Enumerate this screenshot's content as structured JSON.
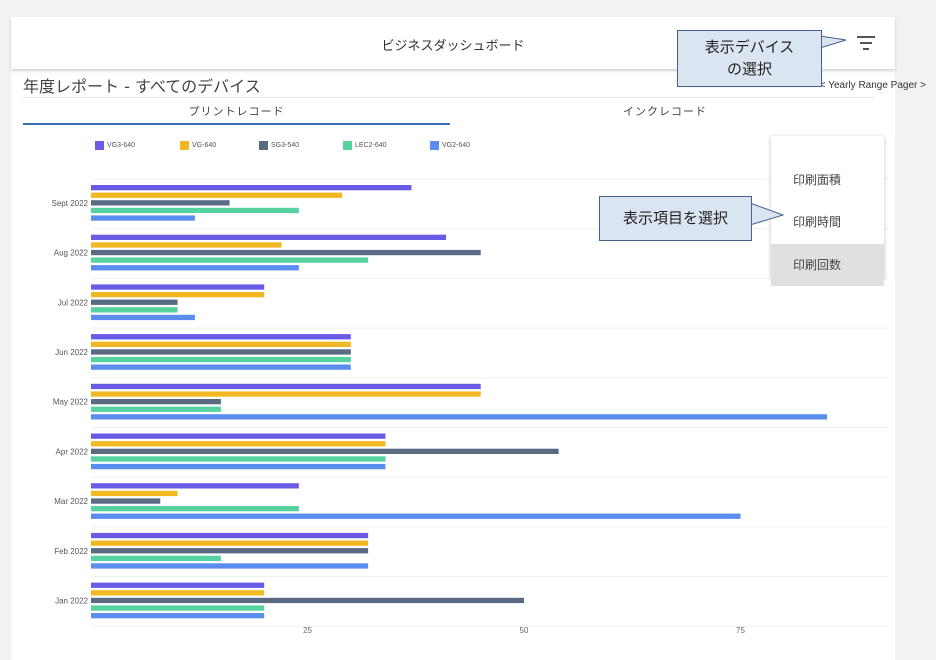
{
  "header": {
    "title": "ビジネスダッシュボード",
    "filter_icon": "filter-list-icon"
  },
  "report": {
    "title": "年度レポート - すべてのデバイス",
    "pager": "< Yearly Range Pager >"
  },
  "tabs": [
    {
      "label": "プリントレコード",
      "active": true
    },
    {
      "label": "インクレコード",
      "active": false
    }
  ],
  "menu": {
    "items": [
      {
        "label": "印刷面積",
        "selected": false
      },
      {
        "label": "印刷時間",
        "selected": false
      },
      {
        "label": "印刷回数",
        "selected": true
      }
    ]
  },
  "callouts": {
    "device": {
      "line1": "表示デバイス",
      "line2": "の選択"
    },
    "item": "表示項目を選択"
  },
  "colors": {
    "tab_accent": "#3b6fb6",
    "callout_fill": "#dbe5f1",
    "callout_border": "#41618c"
  },
  "chart_data": {
    "type": "bar",
    "orientation": "horizontal",
    "categories": [
      "Sept 2022",
      "Aug 2022",
      "Jul 2022",
      "Jun 2022",
      "May 2022",
      "Apr 2022",
      "Mar 2022",
      "Feb 2022",
      "Jan 2022"
    ],
    "series": [
      {
        "name": "VG3-640",
        "color": "#6a5be6",
        "values": [
          37,
          41,
          20,
          30,
          45,
          34,
          24,
          32,
          20
        ]
      },
      {
        "name": "VG-640",
        "color": "#f2b824",
        "values": [
          29,
          22,
          20,
          30,
          45,
          34,
          10,
          32,
          20
        ]
      },
      {
        "name": "SG3-540",
        "color": "#5a6a83",
        "values": [
          16,
          45,
          10,
          30,
          15,
          54,
          8,
          32,
          50
        ]
      },
      {
        "name": "LEC2-640",
        "color": "#56d1a0",
        "values": [
          24,
          32,
          10,
          30,
          15,
          34,
          24,
          15,
          20
        ]
      },
      {
        "name": "VG2-640",
        "color": "#5b8def",
        "values": [
          12,
          24,
          12,
          30,
          85,
          34,
          75,
          32,
          20
        ]
      }
    ],
    "xlim": [
      0,
      92
    ],
    "xticks": [
      "25",
      "50",
      "75"
    ],
    "xtick_values": [
      25,
      50,
      75
    ],
    "grid": true,
    "legend_position": "top"
  }
}
